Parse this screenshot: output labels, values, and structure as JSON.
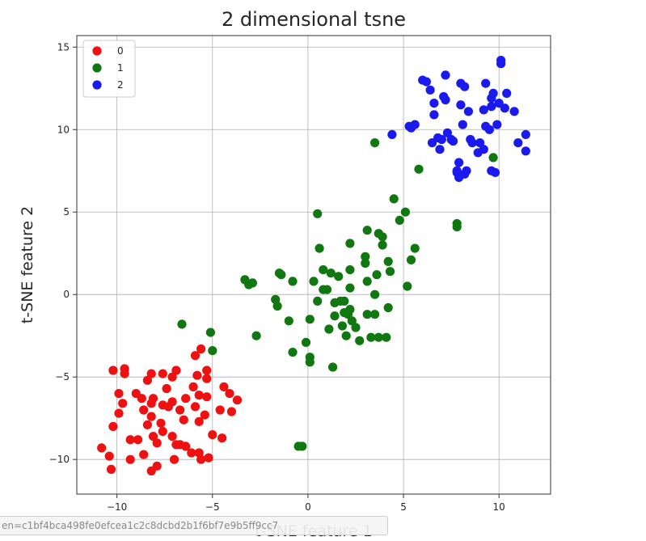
{
  "chart_data": {
    "type": "scatter",
    "title": "2 dimensional tsne",
    "xlabel": "t-SNE feature 1",
    "ylabel": "t-SNE feature 2",
    "xlim": [
      -12.1,
      12.7
    ],
    "ylim": [
      -12.1,
      15.7
    ],
    "xticks": [
      -10,
      -5,
      0,
      5,
      10
    ],
    "yticks": [
      -10,
      -5,
      0,
      5,
      10,
      15
    ],
    "xtick_labels": [
      "−10",
      "−5",
      "0",
      "5",
      "10"
    ],
    "ytick_labels": [
      "−10",
      "−5",
      "0",
      "5",
      "10",
      "15"
    ],
    "grid": true,
    "legend_position": "top-left",
    "series": [
      {
        "name": "0",
        "color": "#ee1111",
        "points": [
          [
            -10.2,
            -4.6
          ],
          [
            -9.6,
            -4.5
          ],
          [
            -9.6,
            -4.8
          ],
          [
            -9.9,
            -6.0
          ],
          [
            -9.7,
            -6.6
          ],
          [
            -10.2,
            -8.0
          ],
          [
            -9.9,
            -7.2
          ],
          [
            -10.8,
            -9.3
          ],
          [
            -10.4,
            -9.8
          ],
          [
            -10.3,
            -10.6
          ],
          [
            -9.3,
            -8.8
          ],
          [
            -8.9,
            -8.8
          ],
          [
            -9.3,
            -10.0
          ],
          [
            -8.6,
            -9.7
          ],
          [
            -8.2,
            -10.7
          ],
          [
            -7.9,
            -10.4
          ],
          [
            -8.6,
            -7.0
          ],
          [
            -8.2,
            -7.4
          ],
          [
            -8.4,
            -7.9
          ],
          [
            -8.1,
            -8.6
          ],
          [
            -7.7,
            -7.8
          ],
          [
            -7.6,
            -8.3
          ],
          [
            -7.1,
            -8.6
          ],
          [
            -6.7,
            -9.1
          ],
          [
            -7.0,
            -10.0
          ],
          [
            -6.9,
            -9.1
          ],
          [
            -6.4,
            -9.2
          ],
          [
            -6.1,
            -9.6
          ],
          [
            -5.7,
            -9.6
          ],
          [
            -5.2,
            -9.9
          ],
          [
            -5.6,
            -10.0
          ],
          [
            -8.7,
            -6.3
          ],
          [
            -8.1,
            -6.3
          ],
          [
            -7.6,
            -6.7
          ],
          [
            -7.3,
            -6.8
          ],
          [
            -7.1,
            -6.5
          ],
          [
            -6.7,
            -7.0
          ],
          [
            -6.4,
            -6.3
          ],
          [
            -6.0,
            -5.6
          ],
          [
            -5.7,
            -6.1
          ],
          [
            -5.8,
            -4.9
          ],
          [
            -5.9,
            -6.8
          ],
          [
            -6.5,
            -7.6
          ],
          [
            -5.7,
            -7.7
          ],
          [
            -5.4,
            -7.3
          ],
          [
            -5.3,
            -6.2
          ],
          [
            -5.3,
            -5.1
          ],
          [
            -4.4,
            -5.6
          ],
          [
            -4.1,
            -6.0
          ],
          [
            -3.7,
            -6.4
          ],
          [
            -4.6,
            -7.0
          ],
          [
            -4.0,
            -7.1
          ],
          [
            -4.5,
            -8.7
          ],
          [
            -5.0,
            -8.5
          ],
          [
            -8.4,
            -5.2
          ],
          [
            -8.2,
            -4.8
          ],
          [
            -7.6,
            -4.8
          ],
          [
            -7.1,
            -5.0
          ],
          [
            -6.9,
            -4.6
          ],
          [
            -7.4,
            -5.7
          ],
          [
            -5.9,
            -3.7
          ],
          [
            -5.6,
            -3.3
          ],
          [
            -5.3,
            -4.6
          ],
          [
            -9.0,
            -6.0
          ],
          [
            -8.2,
            -6.6
          ],
          [
            -7.9,
            -9.0
          ]
        ]
      },
      {
        "name": "1",
        "color": "#117711",
        "points": [
          [
            -6.6,
            -1.8
          ],
          [
            -5.1,
            -2.3
          ],
          [
            -5.0,
            -3.4
          ],
          [
            -3.3,
            0.9
          ],
          [
            -2.9,
            0.7
          ],
          [
            -2.7,
            -2.5
          ],
          [
            -1.7,
            -0.3
          ],
          [
            -1.6,
            -0.7
          ],
          [
            -1.4,
            1.2
          ],
          [
            -1.5,
            1.3
          ],
          [
            -1.0,
            -1.6
          ],
          [
            -0.8,
            0.8
          ],
          [
            -0.8,
            -3.5
          ],
          [
            -0.5,
            -9.2
          ],
          [
            -0.3,
            -9.2
          ],
          [
            -0.1,
            -2.9
          ],
          [
            0.1,
            -3.8
          ],
          [
            0.1,
            -4.1
          ],
          [
            0.1,
            -1.5
          ],
          [
            0.3,
            0.8
          ],
          [
            0.5,
            4.9
          ],
          [
            0.6,
            2.8
          ],
          [
            0.8,
            1.5
          ],
          [
            0.5,
            -0.4
          ],
          [
            0.8,
            0.3
          ],
          [
            1.0,
            0.3
          ],
          [
            1.1,
            -2.1
          ],
          [
            1.4,
            -1.3
          ],
          [
            1.4,
            -0.5
          ],
          [
            1.6,
            1.1
          ],
          [
            1.7,
            -0.4
          ],
          [
            1.9,
            -0.4
          ],
          [
            1.9,
            -1.1
          ],
          [
            1.8,
            -1.9
          ],
          [
            2.1,
            -1.2
          ],
          [
            2.0,
            -2.5
          ],
          [
            2.2,
            0.4
          ],
          [
            2.2,
            -0.9
          ],
          [
            2.3,
            -1.6
          ],
          [
            2.2,
            1.5
          ],
          [
            2.2,
            3.1
          ],
          [
            2.5,
            -2.0
          ],
          [
            2.7,
            -2.8
          ],
          [
            1.3,
            -4.4
          ],
          [
            3.0,
            1.9
          ],
          [
            3.1,
            -1.2
          ],
          [
            3.1,
            0.8
          ],
          [
            3.1,
            3.9
          ],
          [
            3.3,
            -2.6
          ],
          [
            3.5,
            -1.2
          ],
          [
            3.5,
            0.0
          ],
          [
            3.6,
            1.2
          ],
          [
            3.7,
            3.7
          ],
          [
            3.9,
            3.5
          ],
          [
            3.9,
            3.0
          ],
          [
            3.7,
            -2.6
          ],
          [
            4.1,
            -2.6
          ],
          [
            4.2,
            -0.8
          ],
          [
            4.2,
            2.0
          ],
          [
            4.3,
            1.4
          ],
          [
            4.5,
            5.8
          ],
          [
            4.8,
            4.5
          ],
          [
            5.1,
            5.0
          ],
          [
            5.2,
            0.5
          ],
          [
            5.4,
            2.1
          ],
          [
            5.6,
            2.8
          ],
          [
            5.8,
            7.6
          ],
          [
            3.5,
            9.2
          ],
          [
            7.8,
            4.3
          ],
          [
            7.8,
            4.1
          ],
          [
            9.7,
            8.3
          ],
          [
            -3.1,
            0.6
          ],
          [
            1.2,
            1.3
          ],
          [
            3.0,
            2.3
          ]
        ]
      },
      {
        "name": "2",
        "color": "#1a1aee",
        "points": [
          [
            4.4,
            9.7
          ],
          [
            5.3,
            10.2
          ],
          [
            5.4,
            10.1
          ],
          [
            5.6,
            10.3
          ],
          [
            6.0,
            13.0
          ],
          [
            6.2,
            12.9
          ],
          [
            6.4,
            12.4
          ],
          [
            6.5,
            9.2
          ],
          [
            6.6,
            10.9
          ],
          [
            6.8,
            9.5
          ],
          [
            6.9,
            8.8
          ],
          [
            7.0,
            9.4
          ],
          [
            7.1,
            12.0
          ],
          [
            7.2,
            13.3
          ],
          [
            7.2,
            11.8
          ],
          [
            7.3,
            9.8
          ],
          [
            7.5,
            9.4
          ],
          [
            7.6,
            9.3
          ],
          [
            7.8,
            7.4
          ],
          [
            7.8,
            7.5
          ],
          [
            7.9,
            7.1
          ],
          [
            7.9,
            8.0
          ],
          [
            8.0,
            11.5
          ],
          [
            8.1,
            10.3
          ],
          [
            8.0,
            12.8
          ],
          [
            8.2,
            12.6
          ],
          [
            8.2,
            7.3
          ],
          [
            8.3,
            7.5
          ],
          [
            8.4,
            11.1
          ],
          [
            8.5,
            9.4
          ],
          [
            8.6,
            9.2
          ],
          [
            8.9,
            8.6
          ],
          [
            9.0,
            9.2
          ],
          [
            9.2,
            8.8
          ],
          [
            9.2,
            11.2
          ],
          [
            9.3,
            12.8
          ],
          [
            9.3,
            10.2
          ],
          [
            9.5,
            10.0
          ],
          [
            9.6,
            11.9
          ],
          [
            9.6,
            11.4
          ],
          [
            9.6,
            7.5
          ],
          [
            9.8,
            7.4
          ],
          [
            9.9,
            10.3
          ],
          [
            10.0,
            11.6
          ],
          [
            10.1,
            14.2
          ],
          [
            10.1,
            14.0
          ],
          [
            10.3,
            11.3
          ],
          [
            10.4,
            12.2
          ],
          [
            10.8,
            11.1
          ],
          [
            11.0,
            9.2
          ],
          [
            11.4,
            9.7
          ],
          [
            11.4,
            8.7
          ],
          [
            9.7,
            12.2
          ],
          [
            6.6,
            11.6
          ]
        ]
      }
    ]
  },
  "status_bar": {
    "text": "en=c1bf4bca498fe0efcea1c2c8dcbd2b1f6bf7e9b5ff9cc7"
  }
}
